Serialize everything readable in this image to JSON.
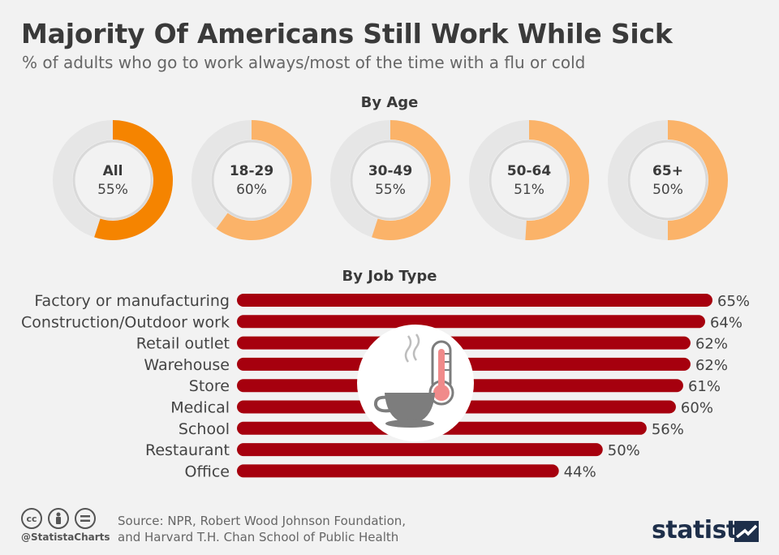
{
  "header": {
    "title": "Majority Of Americans Still Work While Sick",
    "subtitle": "% of adults who go to work always/most of the time with a flu or cold"
  },
  "age_section": {
    "title": "By Age"
  },
  "job_section": {
    "title": "By Job Type"
  },
  "footer": {
    "handle": "@StatistaCharts",
    "source_line1": "Source: NPR, Robert Wood Johnson Foundation,",
    "source_line2": "and Harvard T.H. Chan School of Public Health",
    "brand": "statista"
  },
  "colors": {
    "donut_highlight": "#f58400",
    "donut_fill": "#fbb369",
    "donut_track": "#e6e6e6",
    "bar": "#a6000e",
    "icon_circle": "#ffffff",
    "cup": "#7d7d7d",
    "thermometer_fill": "#f08a8a"
  },
  "icons": [
    "coffee-cup-icon",
    "thermometer-icon",
    "cc-icon",
    "attribution-icon",
    "equals-icon"
  ],
  "chart_data": [
    {
      "type": "pie",
      "title": "By Age",
      "categories": [
        "All",
        "18-29",
        "30-49",
        "50-64",
        "65+"
      ],
      "values": [
        55,
        60,
        55,
        51,
        50
      ],
      "value_labels": [
        "55%",
        "60%",
        "55%",
        "51%",
        "50%"
      ]
    },
    {
      "type": "bar",
      "orientation": "horizontal",
      "title": "By Job Type",
      "categories": [
        "Factory or manufacturing",
        "Construction/Outdoor work",
        "Retail outlet",
        "Warehouse",
        "Store",
        "Medical",
        "School",
        "Restaurant",
        "Office"
      ],
      "values": [
        65,
        64,
        62,
        62,
        61,
        60,
        56,
        50,
        44
      ],
      "value_labels": [
        "65%",
        "64%",
        "62%",
        "62%",
        "61%",
        "60%",
        "56%",
        "50%",
        "44%"
      ]
    }
  ]
}
